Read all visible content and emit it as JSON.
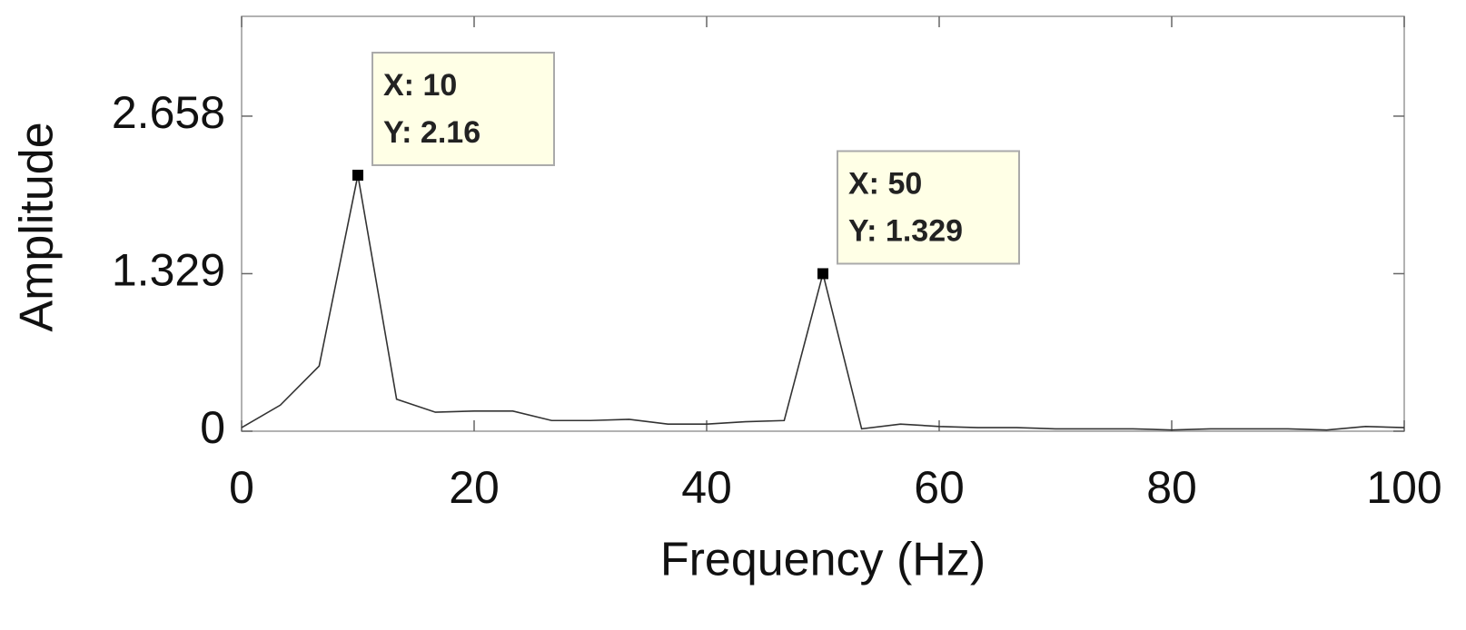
{
  "chart_data": {
    "type": "line",
    "xlabel": "Frequency (Hz)",
    "ylabel": "Amplitude",
    "x": [
      0,
      3.33,
      6.67,
      10,
      13.33,
      16.67,
      20,
      23.33,
      26.67,
      30,
      33.33,
      36.67,
      40,
      43.33,
      46.67,
      50,
      53.33,
      56.67,
      60,
      63.33,
      66.67,
      70,
      73.33,
      76.67,
      80,
      83.33,
      86.67,
      90,
      93.33,
      96.67,
      100
    ],
    "series": [
      {
        "color": "#333333",
        "values": [
          0.03,
          0.22,
          0.55,
          2.16,
          0.27,
          0.16,
          0.17,
          0.17,
          0.09,
          0.09,
          0.1,
          0.06,
          0.06,
          0.08,
          0.09,
          1.329,
          0.02,
          0.06,
          0.04,
          0.03,
          0.03,
          0.02,
          0.02,
          0.02,
          0.01,
          0.02,
          0.02,
          0.02,
          0.01,
          0.04,
          0.03
        ]
      }
    ],
    "xlim": [
      0,
      100
    ],
    "xticks": [
      0,
      20,
      40,
      60,
      80,
      100
    ],
    "ylim": [
      0,
      3.5
    ],
    "yticks": [
      0,
      1.329,
      2.658
    ],
    "annotations": [
      {
        "x": 10,
        "y": 2.16,
        "lines": [
          "X: 10",
          "Y: 2.16"
        ]
      },
      {
        "x": 50,
        "y": 1.329,
        "lines": [
          "X: 50",
          "Y: 1.329"
        ]
      }
    ]
  }
}
